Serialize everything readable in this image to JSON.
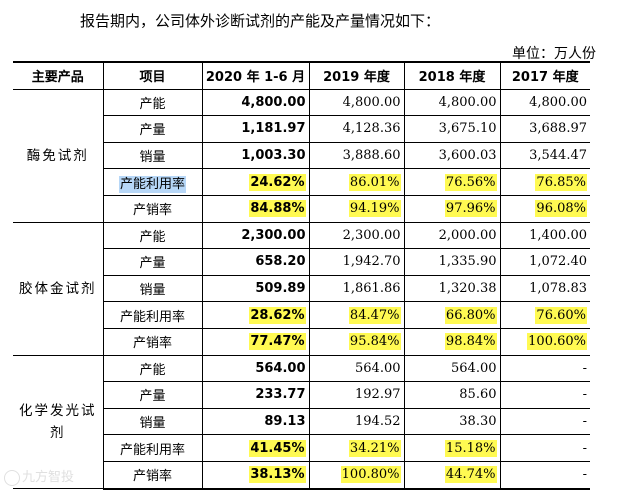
{
  "intro": "报告期内，公司体外诊断试剂的产能及产量情况如下：",
  "unit": "单位：万人份",
  "headers": [
    "主要产品",
    "项目",
    "2020 年 1-6 月",
    "2019 年度",
    "2018 年度",
    "2017 年度"
  ],
  "groups": [
    {
      "product": "酶免试剂",
      "rows": [
        {
          "item": "产能",
          "v": [
            "4,800.00",
            "4,800.00",
            "4,800.00",
            "4,800.00"
          ]
        },
        {
          "item": "产量",
          "v": [
            "1,181.97",
            "4,128.36",
            "3,675.10",
            "3,688.97"
          ]
        },
        {
          "item": "销量",
          "v": [
            "1,003.30",
            "3,888.60",
            "3,600.03",
            "3,544.47"
          ]
        },
        {
          "item": "产能利用率",
          "v": [
            "24.62%",
            "86.01%",
            "76.56%",
            "76.85%"
          ]
        },
        {
          "item": "产销率",
          "v": [
            "84.88%",
            "94.19%",
            "97.96%",
            "96.08%"
          ]
        }
      ]
    },
    {
      "product": "胶体金试剂",
      "rows": [
        {
          "item": "产能",
          "v": [
            "2,300.00",
            "2,300.00",
            "2,000.00",
            "1,400.00"
          ]
        },
        {
          "item": "产量",
          "v": [
            "658.20",
            "1,942.70",
            "1,335.90",
            "1,072.40"
          ]
        },
        {
          "item": "销量",
          "v": [
            "509.89",
            "1,861.86",
            "1,320.38",
            "1,078.83"
          ]
        },
        {
          "item": "产能利用率",
          "v": [
            "28.62%",
            "84.47%",
            "66.80%",
            "76.60%"
          ]
        },
        {
          "item": "产销率",
          "v": [
            "77.47%",
            "95.84%",
            "98.84%",
            "100.60%"
          ]
        }
      ]
    },
    {
      "product": "化学发光试剂",
      "rows": [
        {
          "item": "产能",
          "v": [
            "564.00",
            "564.00",
            "564.00",
            "-"
          ]
        },
        {
          "item": "产量",
          "v": [
            "233.77",
            "192.97",
            "85.60",
            "-"
          ]
        },
        {
          "item": "销量",
          "v": [
            "89.13",
            "194.52",
            "38.30",
            "-"
          ]
        },
        {
          "item": "产能利用率",
          "v": [
            "41.45%",
            "34.21%",
            "15.18%",
            "-"
          ]
        },
        {
          "item": "产销率",
          "v": [
            "38.13%",
            "100.80%",
            "44.74%",
            "-"
          ]
        }
      ]
    }
  ],
  "watermark": "九方智投"
}
